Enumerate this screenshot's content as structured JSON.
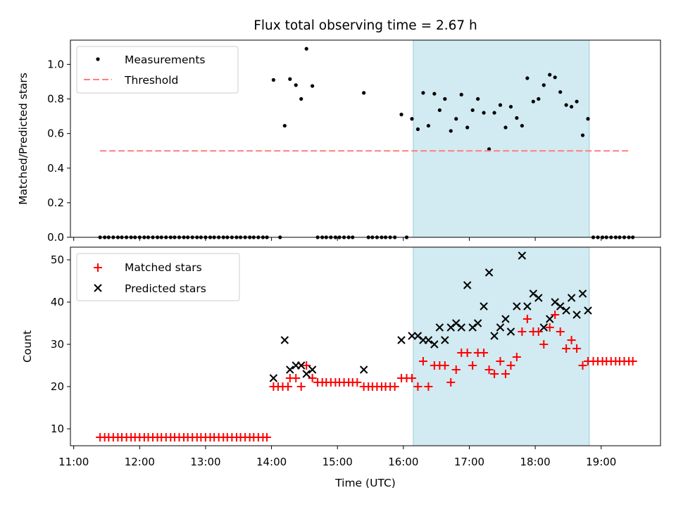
{
  "title": "Flux total observing time = 2.67 h",
  "chart_data": [
    {
      "type": "scatter",
      "ylabel": "Matched/Predicted stars",
      "xlabel": "",
      "xlim": [
        10.95,
        19.9
      ],
      "ylim": [
        0,
        1.14
      ],
      "yticks": [
        "0.0",
        "0.2",
        "0.4",
        "0.6",
        "0.8",
        "1.0"
      ],
      "shaded_interval": [
        16.15,
        18.82
      ],
      "legend_position": "top-left",
      "threshold": {
        "name": "Threshold",
        "value": 0.5,
        "x_range": [
          11.4,
          19.45
        ],
        "color": "#ff7f7f"
      },
      "series": [
        {
          "name": "Measurements",
          "color": "#000000",
          "points": [
            [
              11.4,
              0
            ],
            [
              11.47,
              0
            ],
            [
              11.53,
              0
            ],
            [
              11.6,
              0
            ],
            [
              11.67,
              0
            ],
            [
              11.73,
              0
            ],
            [
              11.8,
              0
            ],
            [
              11.87,
              0
            ],
            [
              11.93,
              0
            ],
            [
              12.0,
              0
            ],
            [
              12.07,
              0
            ],
            [
              12.13,
              0
            ],
            [
              12.2,
              0
            ],
            [
              12.27,
              0
            ],
            [
              12.33,
              0
            ],
            [
              12.4,
              0
            ],
            [
              12.47,
              0
            ],
            [
              12.53,
              0
            ],
            [
              12.6,
              0
            ],
            [
              12.67,
              0
            ],
            [
              12.73,
              0
            ],
            [
              12.8,
              0
            ],
            [
              12.87,
              0
            ],
            [
              12.93,
              0
            ],
            [
              13.0,
              0
            ],
            [
              13.07,
              0
            ],
            [
              13.13,
              0
            ],
            [
              13.2,
              0
            ],
            [
              13.27,
              0
            ],
            [
              13.33,
              0
            ],
            [
              13.4,
              0
            ],
            [
              13.47,
              0
            ],
            [
              13.53,
              0
            ],
            [
              13.6,
              0
            ],
            [
              13.67,
              0
            ],
            [
              13.73,
              0
            ],
            [
              13.8,
              0
            ],
            [
              13.87,
              0
            ],
            [
              13.93,
              0
            ],
            [
              14.03,
              0.91
            ],
            [
              14.13,
              0
            ],
            [
              14.2,
              0.645
            ],
            [
              14.28,
              0.915
            ],
            [
              14.37,
              0.88
            ],
            [
              14.45,
              0.8
            ],
            [
              14.53,
              1.09
            ],
            [
              14.62,
              0.875
            ],
            [
              14.7,
              0
            ],
            [
              14.77,
              0
            ],
            [
              14.83,
              0
            ],
            [
              14.9,
              0
            ],
            [
              14.97,
              0
            ],
            [
              15.03,
              0
            ],
            [
              15.1,
              0
            ],
            [
              15.17,
              0
            ],
            [
              15.23,
              0
            ],
            [
              15.4,
              0.835
            ],
            [
              15.47,
              0
            ],
            [
              15.53,
              0
            ],
            [
              15.6,
              0
            ],
            [
              15.67,
              0
            ],
            [
              15.73,
              0
            ],
            [
              15.8,
              0
            ],
            [
              15.87,
              0
            ],
            [
              15.97,
              0.71
            ],
            [
              16.05,
              0
            ],
            [
              16.13,
              0.685
            ],
            [
              16.22,
              0.625
            ],
            [
              16.3,
              0.835
            ],
            [
              16.38,
              0.645
            ],
            [
              16.47,
              0.83
            ],
            [
              16.55,
              0.735
            ],
            [
              16.63,
              0.8
            ],
            [
              16.72,
              0.615
            ],
            [
              16.8,
              0.685
            ],
            [
              16.88,
              0.825
            ],
            [
              16.97,
              0.635
            ],
            [
              17.05,
              0.735
            ],
            [
              17.13,
              0.8
            ],
            [
              17.22,
              0.72
            ],
            [
              17.3,
              0.51
            ],
            [
              17.38,
              0.72
            ],
            [
              17.47,
              0.765
            ],
            [
              17.55,
              0.635
            ],
            [
              17.63,
              0.755
            ],
            [
              17.72,
              0.69
            ],
            [
              17.8,
              0.645
            ],
            [
              17.88,
              0.92
            ],
            [
              17.97,
              0.785
            ],
            [
              18.05,
              0.8
            ],
            [
              18.13,
              0.88
            ],
            [
              18.22,
              0.94
            ],
            [
              18.3,
              0.925
            ],
            [
              18.38,
              0.84
            ],
            [
              18.47,
              0.765
            ],
            [
              18.55,
              0.755
            ],
            [
              18.63,
              0.785
            ],
            [
              18.72,
              0.59
            ],
            [
              18.8,
              0.685
            ],
            [
              18.88,
              0
            ],
            [
              18.95,
              0
            ],
            [
              19.02,
              0
            ],
            [
              19.08,
              0
            ],
            [
              19.15,
              0
            ],
            [
              19.22,
              0
            ],
            [
              19.28,
              0
            ],
            [
              19.35,
              0
            ],
            [
              19.42,
              0
            ],
            [
              19.48,
              0
            ]
          ]
        }
      ]
    },
    {
      "type": "scatter",
      "ylabel": "Count",
      "xlabel": "Time (UTC)",
      "xlim": [
        10.95,
        19.9
      ],
      "ylim": [
        6,
        53
      ],
      "yticks": [
        "10",
        "20",
        "30",
        "40",
        "50"
      ],
      "xticks": [
        "11:00",
        "12:00",
        "13:00",
        "14:00",
        "15:00",
        "16:00",
        "17:00",
        "18:00",
        "19:00"
      ],
      "shaded_interval": [
        16.15,
        18.82
      ],
      "legend_position": "top-left",
      "series": [
        {
          "name": "Matched stars",
          "marker": "plus",
          "color": "#ff0000",
          "points": [
            [
              11.4,
              8
            ],
            [
              11.47,
              8
            ],
            [
              11.53,
              8
            ],
            [
              11.6,
              8
            ],
            [
              11.67,
              8
            ],
            [
              11.73,
              8
            ],
            [
              11.8,
              8
            ],
            [
              11.87,
              8
            ],
            [
              11.93,
              8
            ],
            [
              12.0,
              8
            ],
            [
              12.07,
              8
            ],
            [
              12.13,
              8
            ],
            [
              12.2,
              8
            ],
            [
              12.27,
              8
            ],
            [
              12.33,
              8
            ],
            [
              12.4,
              8
            ],
            [
              12.47,
              8
            ],
            [
              12.53,
              8
            ],
            [
              12.6,
              8
            ],
            [
              12.67,
              8
            ],
            [
              12.73,
              8
            ],
            [
              12.8,
              8
            ],
            [
              12.87,
              8
            ],
            [
              12.93,
              8
            ],
            [
              13.0,
              8
            ],
            [
              13.07,
              8
            ],
            [
              13.13,
              8
            ],
            [
              13.2,
              8
            ],
            [
              13.27,
              8
            ],
            [
              13.33,
              8
            ],
            [
              13.4,
              8
            ],
            [
              13.47,
              8
            ],
            [
              13.53,
              8
            ],
            [
              13.6,
              8
            ],
            [
              13.67,
              8
            ],
            [
              13.73,
              8
            ],
            [
              13.8,
              8
            ],
            [
              13.87,
              8
            ],
            [
              13.93,
              8
            ],
            [
              14.03,
              20
            ],
            [
              14.1,
              20
            ],
            [
              14.17,
              20
            ],
            [
              14.25,
              20
            ],
            [
              14.28,
              22
            ],
            [
              14.37,
              22
            ],
            [
              14.45,
              20
            ],
            [
              14.53,
              25
            ],
            [
              14.62,
              22
            ],
            [
              14.7,
              21
            ],
            [
              14.77,
              21
            ],
            [
              14.83,
              21
            ],
            [
              14.9,
              21
            ],
            [
              14.97,
              21
            ],
            [
              15.03,
              21
            ],
            [
              15.1,
              21
            ],
            [
              15.17,
              21
            ],
            [
              15.23,
              21
            ],
            [
              15.3,
              21
            ],
            [
              15.4,
              20
            ],
            [
              15.47,
              20
            ],
            [
              15.53,
              20
            ],
            [
              15.6,
              20
            ],
            [
              15.67,
              20
            ],
            [
              15.73,
              20
            ],
            [
              15.8,
              20
            ],
            [
              15.87,
              20
            ],
            [
              15.97,
              22
            ],
            [
              16.05,
              22
            ],
            [
              16.13,
              22
            ],
            [
              16.22,
              20
            ],
            [
              16.3,
              26
            ],
            [
              16.38,
              20
            ],
            [
              16.47,
              25
            ],
            [
              16.55,
              25
            ],
            [
              16.63,
              25
            ],
            [
              16.72,
              21
            ],
            [
              16.8,
              24
            ],
            [
              16.88,
              28
            ],
            [
              16.97,
              28
            ],
            [
              17.05,
              25
            ],
            [
              17.13,
              28
            ],
            [
              17.22,
              28
            ],
            [
              17.3,
              24
            ],
            [
              17.38,
              23
            ],
            [
              17.47,
              26
            ],
            [
              17.55,
              23
            ],
            [
              17.63,
              25
            ],
            [
              17.72,
              27
            ],
            [
              17.8,
              33
            ],
            [
              17.88,
              36
            ],
            [
              17.97,
              33
            ],
            [
              18.05,
              33
            ],
            [
              18.13,
              30
            ],
            [
              18.22,
              34
            ],
            [
              18.3,
              37
            ],
            [
              18.38,
              33
            ],
            [
              18.47,
              29
            ],
            [
              18.55,
              31
            ],
            [
              18.63,
              29
            ],
            [
              18.72,
              25
            ],
            [
              18.8,
              26
            ],
            [
              18.88,
              26
            ],
            [
              18.95,
              26
            ],
            [
              19.02,
              26
            ],
            [
              19.08,
              26
            ],
            [
              19.15,
              26
            ],
            [
              19.22,
              26
            ],
            [
              19.28,
              26
            ],
            [
              19.35,
              26
            ],
            [
              19.42,
              26
            ],
            [
              19.48,
              26
            ]
          ]
        },
        {
          "name": "Predicted stars",
          "marker": "x",
          "color": "#000000",
          "points": [
            [
              14.03,
              22
            ],
            [
              14.2,
              31
            ],
            [
              14.28,
              24
            ],
            [
              14.37,
              25
            ],
            [
              14.45,
              25
            ],
            [
              14.53,
              23
            ],
            [
              14.62,
              24
            ],
            [
              15.4,
              24
            ],
            [
              15.97,
              31
            ],
            [
              16.13,
              32
            ],
            [
              16.22,
              32
            ],
            [
              16.3,
              31
            ],
            [
              16.38,
              31
            ],
            [
              16.47,
              30
            ],
            [
              16.55,
              34
            ],
            [
              16.63,
              31
            ],
            [
              16.72,
              34
            ],
            [
              16.8,
              35
            ],
            [
              16.88,
              34
            ],
            [
              16.97,
              44
            ],
            [
              17.05,
              34
            ],
            [
              17.13,
              35
            ],
            [
              17.22,
              39
            ],
            [
              17.3,
              47
            ],
            [
              17.38,
              32
            ],
            [
              17.47,
              34
            ],
            [
              17.55,
              36
            ],
            [
              17.63,
              33
            ],
            [
              17.72,
              39
            ],
            [
              17.8,
              51
            ],
            [
              17.88,
              39
            ],
            [
              17.97,
              42
            ],
            [
              18.05,
              41
            ],
            [
              18.13,
              34
            ],
            [
              18.22,
              36
            ],
            [
              18.3,
              40
            ],
            [
              18.38,
              39
            ],
            [
              18.47,
              38
            ],
            [
              18.55,
              41
            ],
            [
              18.63,
              37
            ],
            [
              18.72,
              42
            ],
            [
              18.8,
              38
            ]
          ]
        }
      ]
    }
  ]
}
